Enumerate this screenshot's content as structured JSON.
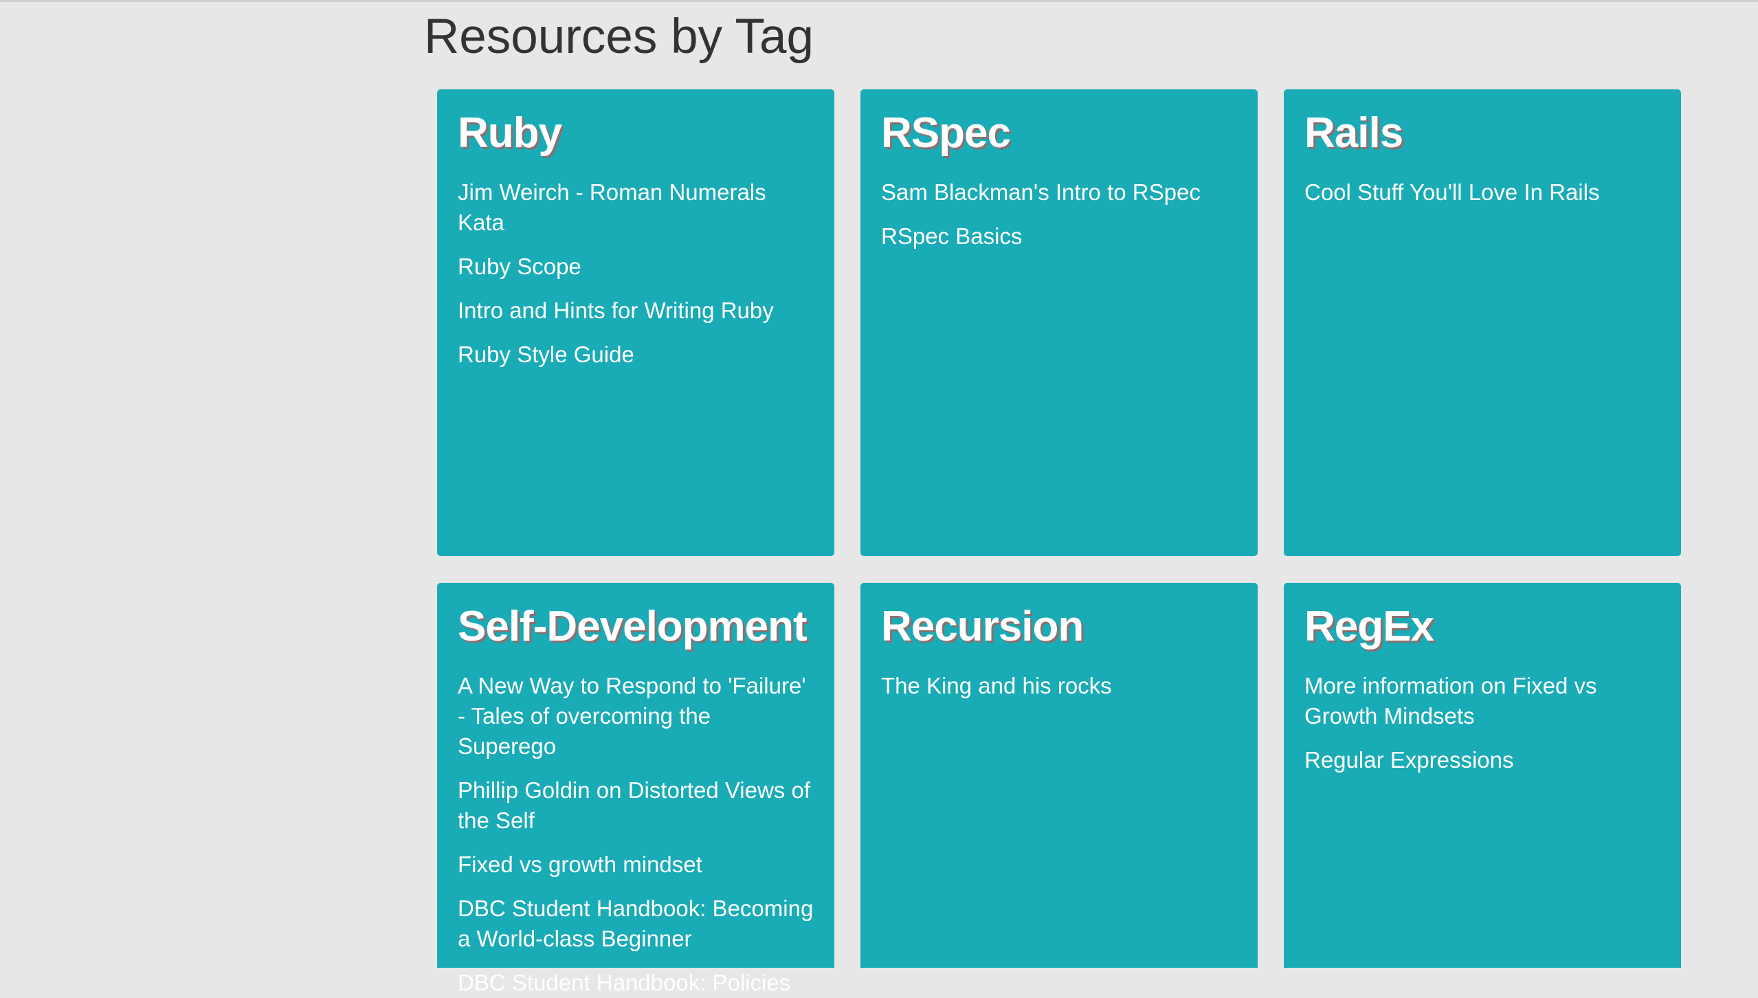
{
  "page": {
    "title": "Resources by Tag"
  },
  "tags": [
    {
      "name": "Ruby",
      "resources": [
        "Jim Weirch - Roman Numerals Kata",
        "Ruby Scope",
        "Intro and Hints for Writing Ruby",
        "Ruby Style Guide"
      ]
    },
    {
      "name": "RSpec",
      "resources": [
        "Sam Blackman's Intro to RSpec",
        "RSpec Basics"
      ]
    },
    {
      "name": "Rails",
      "resources": [
        "Cool Stuff You'll Love In Rails"
      ]
    },
    {
      "name": "Self-Development",
      "resources": [
        "A New Way to Respond to 'Failure' - Tales of overcoming the Superego",
        "Phillip Goldin on Distorted Views of the Self",
        "Fixed vs growth mindset",
        "DBC Student Handbook: Becoming a World-class Beginner",
        "DBC Student Handbook: Policies"
      ]
    },
    {
      "name": "Recursion",
      "resources": [
        "The King and his rocks"
      ]
    },
    {
      "name": "RegEx",
      "resources": [
        "More information on Fixed vs Growth Mindsets",
        "Regular Expressions"
      ]
    }
  ],
  "colors": {
    "background": "#e7e7e7",
    "card": "#19abb6",
    "title_text": "#333333",
    "card_text": "#ffffff"
  }
}
